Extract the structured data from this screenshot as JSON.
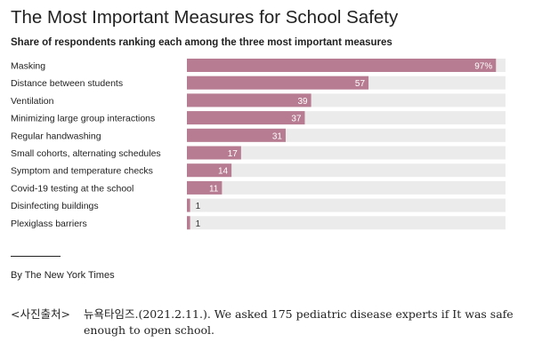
{
  "chart_data": {
    "type": "bar",
    "orientation": "horizontal",
    "title": "The Most Important Measures for School Safety",
    "subtitle": "Share of respondents ranking each among the three most important measures",
    "categories": [
      "Masking",
      "Distance between students",
      "Ventilation",
      "Minimizing large group interactions",
      "Regular handwashing",
      "Small cohorts, alternating schedules",
      "Symptom and temperature checks",
      "Covid-19 testing at the school",
      "Disinfecting buildings",
      "Plexiglass barriers"
    ],
    "values": [
      97,
      57,
      39,
      37,
      31,
      17,
      14,
      11,
      1,
      1
    ],
    "value_labels": [
      "97%",
      "57",
      "39",
      "37",
      "31",
      "17",
      "14",
      "11",
      "1",
      "1"
    ],
    "xlim": [
      0,
      100
    ],
    "bar_color": "#b77c91",
    "track_color": "#ebebeb",
    "grid": false
  },
  "credit": "By The New York Times",
  "caption": {
    "label": "<사진출처>",
    "text": "뉴욕타임즈.(2021.2.11.). We asked 175 pediatric disease experts if It was safe enough to open school."
  }
}
